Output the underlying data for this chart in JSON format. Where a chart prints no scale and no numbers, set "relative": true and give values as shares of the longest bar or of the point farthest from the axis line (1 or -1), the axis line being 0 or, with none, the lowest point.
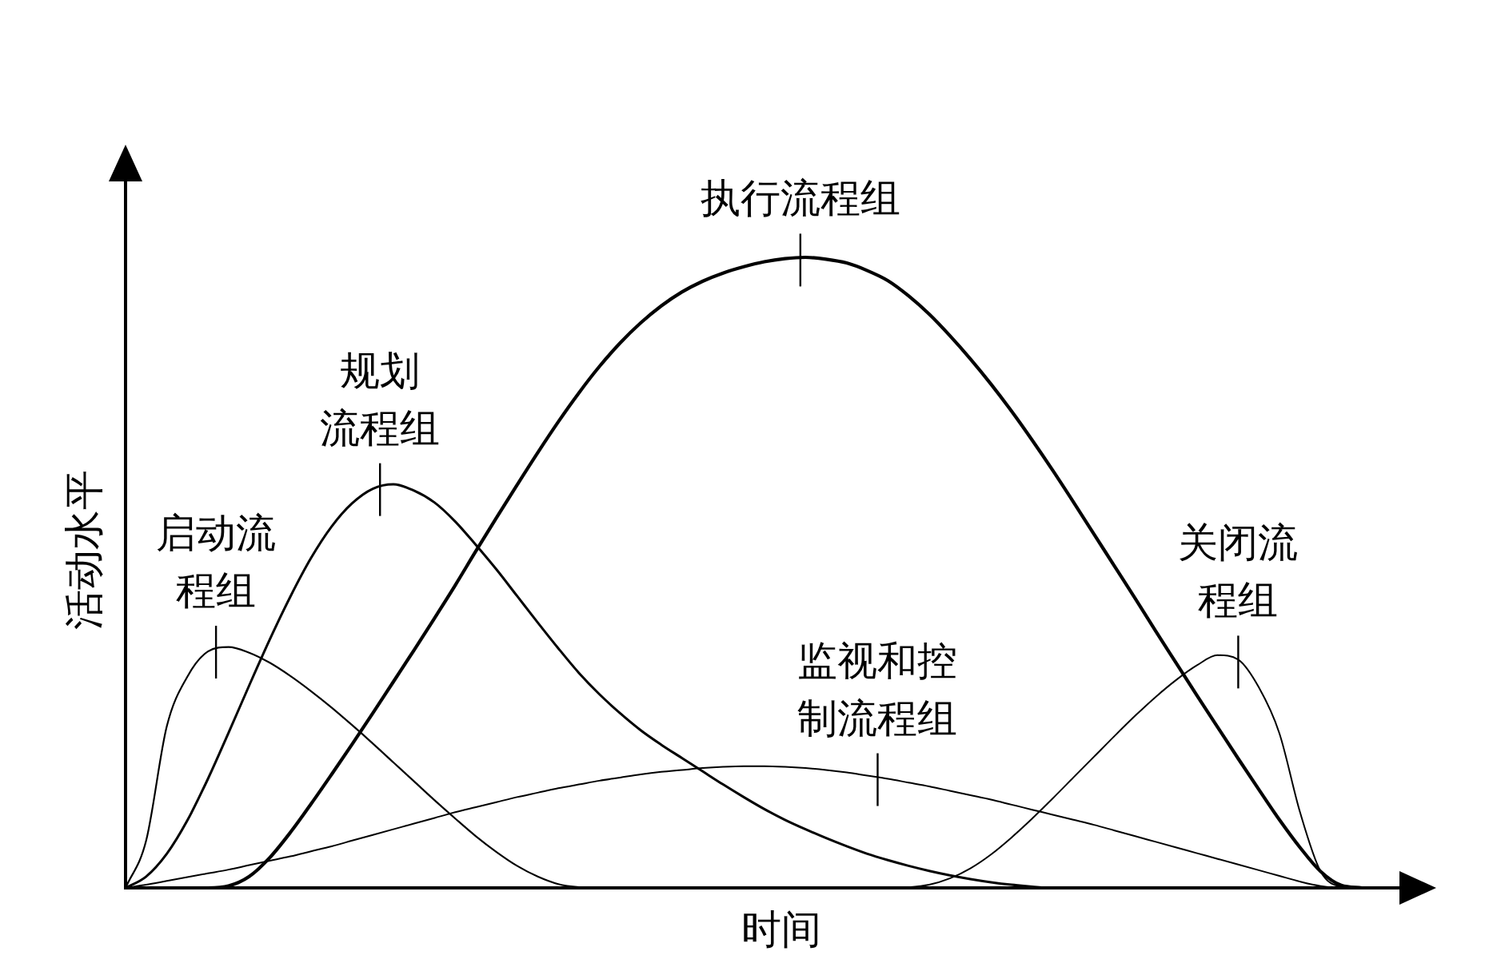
{
  "chart_data": {
    "type": "line",
    "relative": true,
    "xlabel": "时间",
    "ylabel": "活动水平",
    "categories": [
      null,
      null,
      null,
      null,
      null,
      null,
      null,
      null,
      null,
      null,
      null,
      null,
      null,
      null,
      null,
      null,
      null,
      null,
      null,
      null,
      null,
      null,
      null,
      null,
      null,
      null,
      null,
      null,
      null,
      null,
      null,
      null,
      null,
      null,
      null,
      null,
      null,
      null,
      null,
      null,
      null,
      null,
      null,
      null,
      null,
      null,
      null,
      null,
      null,
      null,
      null,
      null,
      null,
      null,
      null,
      null,
      null,
      null,
      null,
      null,
      null
    ],
    "series": [
      {
        "name": "启动流程组",
        "color": "#000000",
        "values": [
          0,
          0.075,
          0.256,
          0.335,
          0.375,
          0.382,
          0.373,
          0.357,
          0.336,
          0.312,
          0.286,
          0.258,
          0.229,
          0.199,
          0.169,
          0.139,
          0.11,
          0.082,
          0.057,
          0.035,
          0.018,
          0.006,
          0.001,
          0,
          0,
          0,
          0,
          0,
          0,
          0,
          0,
          0,
          0,
          0,
          0,
          0,
          0,
          0,
          0,
          0,
          0,
          0,
          0,
          0,
          0,
          0,
          0,
          0,
          0,
          0,
          0,
          0,
          0,
          0,
          0,
          0,
          0,
          0,
          0,
          0,
          0
        ]
      },
      {
        "name": "规划流程组",
        "color": "#000000",
        "values": [
          0,
          0.018,
          0.054,
          0.107,
          0.173,
          0.246,
          0.321,
          0.394,
          0.462,
          0.523,
          0.573,
          0.61,
          0.633,
          0.64,
          0.63,
          0.611,
          0.581,
          0.544,
          0.505,
          0.463,
          0.421,
          0.38,
          0.341,
          0.307,
          0.277,
          0.25,
          0.227,
          0.206,
          0.185,
          0.164,
          0.144,
          0.125,
          0.108,
          0.093,
          0.079,
          0.066,
          0.054,
          0.044,
          0.035,
          0.027,
          0.02,
          0.014,
          0.009,
          0.005,
          0.002,
          0,
          0,
          0,
          0,
          0,
          0,
          0,
          0,
          0,
          0,
          0,
          0,
          0,
          0,
          0,
          0
        ]
      },
      {
        "name": "执行流程组",
        "color": "#000000",
        "values": [
          0,
          0,
          0,
          0,
          0,
          0.003,
          0.018,
          0.048,
          0.088,
          0.133,
          0.18,
          0.228,
          0.277,
          0.327,
          0.377,
          0.428,
          0.48,
          0.534,
          0.587,
          0.639,
          0.69,
          0.739,
          0.785,
          0.827,
          0.864,
          0.896,
          0.923,
          0.945,
          0.962,
          0.975,
          0.985,
          0.993,
          0.998,
          1.0,
          0.997,
          0.991,
          0.979,
          0.963,
          0.939,
          0.91,
          0.876,
          0.839,
          0.799,
          0.756,
          0.71,
          0.662,
          0.612,
          0.561,
          0.51,
          0.459,
          0.407,
          0.356,
          0.305,
          0.255,
          0.205,
          0.156,
          0.108,
          0.064,
          0.026,
          0.004,
          0
        ]
      },
      {
        "name": "监视和控制流程组",
        "color": "#000000",
        "values": [
          0,
          0.005,
          0.011,
          0.017,
          0.023,
          0.029,
          0.036,
          0.043,
          0.05,
          0.058,
          0.066,
          0.075,
          0.084,
          0.093,
          0.102,
          0.111,
          0.12,
          0.128,
          0.136,
          0.144,
          0.151,
          0.158,
          0.164,
          0.17,
          0.175,
          0.18,
          0.184,
          0.187,
          0.19,
          0.192,
          0.193,
          0.193,
          0.192,
          0.19,
          0.187,
          0.183,
          0.178,
          0.173,
          0.167,
          0.161,
          0.154,
          0.147,
          0.14,
          0.132,
          0.124,
          0.116,
          0.108,
          0.1,
          0.091,
          0.082,
          0.073,
          0.064,
          0.055,
          0.046,
          0.037,
          0.028,
          0.019,
          0.01,
          0.003,
          0,
          0
        ]
      },
      {
        "name": "关闭流程组",
        "color": "#000000",
        "values": [
          0,
          0,
          0,
          0,
          0,
          0,
          0,
          0,
          0,
          0,
          0,
          0,
          0,
          0,
          0,
          0,
          0,
          0,
          0,
          0,
          0,
          0,
          0,
          0,
          0,
          0,
          0,
          0,
          0,
          0,
          0,
          0,
          0,
          0,
          0,
          0,
          0,
          0,
          0.001,
          0.005,
          0.015,
          0.031,
          0.053,
          0.08,
          0.11,
          0.142,
          0.175,
          0.208,
          0.241,
          0.273,
          0.303,
          0.33,
          0.353,
          0.369,
          0.362,
          0.318,
          0.245,
          0.12,
          0.026,
          0.002,
          0
        ]
      }
    ]
  }
}
